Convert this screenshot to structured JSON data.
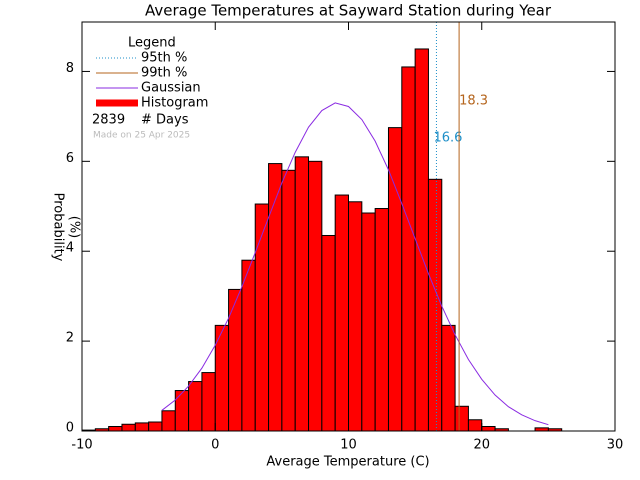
{
  "chart_data": {
    "type": "histogram",
    "title": "Average Temperatures at Sayward Station during Year",
    "x_label": "Average Temperature (C)",
    "y_label": [
      "Probability",
      "(%)"
    ],
    "bins": [
      -10,
      -9,
      -8,
      -7,
      -6,
      -5,
      -4,
      -3,
      -2,
      -1,
      0,
      1,
      2,
      3,
      4,
      5,
      6,
      7,
      8,
      9,
      10,
      11,
      12,
      13,
      14,
      15,
      16,
      17,
      18,
      19,
      20,
      21,
      22,
      23,
      24,
      25,
      26
    ],
    "values": [
      0.02,
      0.05,
      0.1,
      0.15,
      0.18,
      0.2,
      0.45,
      0.9,
      1.1,
      1.3,
      2.35,
      3.15,
      3.8,
      5.05,
      5.95,
      5.8,
      6.1,
      6.0,
      4.35,
      5.25,
      5.1,
      4.85,
      4.95,
      6.75,
      8.1,
      8.5,
      5.6,
      2.35,
      0.55,
      0.25,
      0.1,
      0.05,
      0,
      0,
      0.07,
      0.05
    ],
    "name": "Histogram",
    "color": "#ff0000",
    "gaussian": {
      "name": "Gaussian",
      "color": "#8a2be2",
      "x": [
        -4,
        -3,
        -2,
        -1,
        0,
        1,
        2,
        3,
        4,
        5,
        6,
        7,
        8,
        9,
        10,
        11,
        12,
        13,
        14,
        15,
        16,
        17,
        18,
        19,
        20,
        21,
        22,
        23,
        24,
        25
      ],
      "values": [
        0.46,
        0.69,
        1.0,
        1.4,
        1.91,
        2.51,
        3.21,
        3.97,
        4.75,
        5.52,
        6.2,
        6.76,
        7.13,
        7.3,
        7.22,
        6.93,
        6.45,
        5.81,
        5.06,
        4.28,
        3.5,
        2.78,
        2.14,
        1.59,
        1.15,
        0.8,
        0.54,
        0.36,
        0.23,
        0.14
      ]
    },
    "percentiles": [
      {
        "name": "95th %",
        "value": 16.6,
        "color": "#1e8fc8",
        "dash": true
      },
      {
        "name": "99th %",
        "value": 18.3,
        "color": "#b5651d",
        "dash": false
      }
    ],
    "legend_title": "Legend",
    "days": {
      "value": 2839,
      "label": "# Days"
    },
    "note": "Made on 25 Apr 2025",
    "xlim": [
      -10,
      30
    ],
    "xticks": [
      -10,
      0,
      10,
      20,
      30
    ],
    "ylim": [
      0,
      9.1
    ],
    "yticks": [
      0,
      2,
      4,
      6,
      8
    ]
  }
}
